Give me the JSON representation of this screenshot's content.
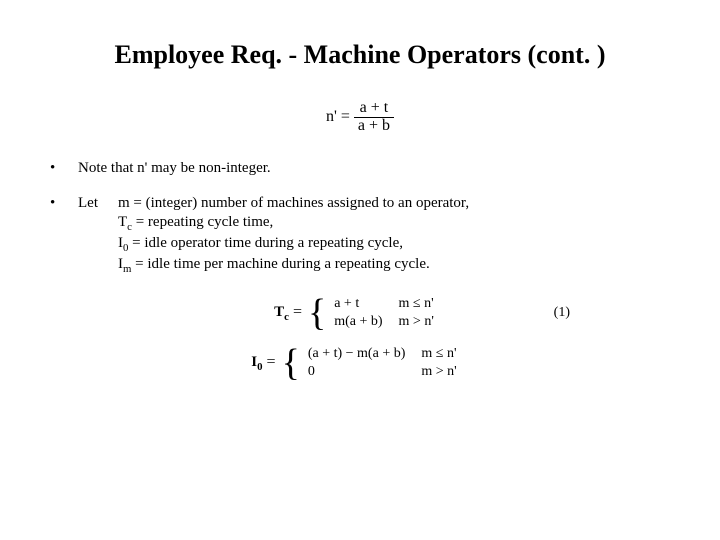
{
  "colors": {
    "background": "#ffffff",
    "text": "#000000"
  },
  "title": "Employee Req. - Machine Operators (cont. )",
  "eq_nprime": {
    "lhs": "n' =",
    "num": "a + t",
    "den": "a + b"
  },
  "bullets": {
    "b1": "Note that n' may be non-integer.",
    "let": "Let",
    "defs": {
      "d1": "m = (integer) number of machines assigned to an operator,",
      "d2_lhs": "T",
      "d2_sub": "c",
      "d2_rest": " = repeating cycle time,",
      "d3_lhs": "I",
      "d3_sub": "0",
      "d3_rest": " = idle operator time during a repeating cycle,",
      "d4_lhs": "I",
      "d4_sub": "m",
      "d4_rest": " = idle time per machine during a repeating cycle."
    }
  },
  "eq_tc": {
    "lhs": "T",
    "lhs_sub": "c",
    "eq": " = ",
    "case1_val": "a + t",
    "case1_cond": "m ≤ n'",
    "case2_val": "m(a + b)",
    "case2_cond": "m > n'",
    "num": "(1)"
  },
  "eq_i0": {
    "lhs": "I",
    "lhs_sub": "0",
    "eq": " = ",
    "case1_val": "(a + t) − m(a + b)",
    "case1_cond": "m ≤ n'",
    "case2_val": "0",
    "case2_cond": "m > n'"
  }
}
